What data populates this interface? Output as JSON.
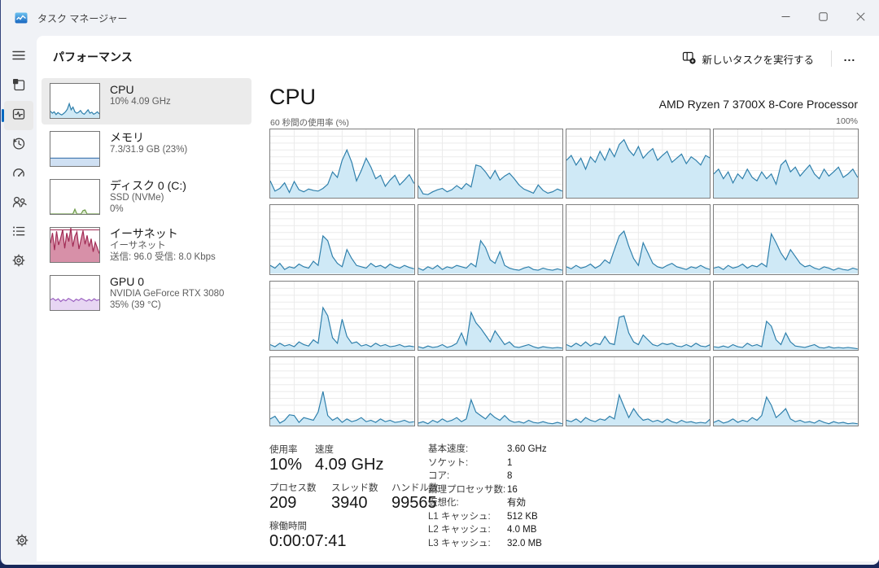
{
  "window": {
    "title": "タスク マネージャー"
  },
  "header": {
    "title": "パフォーマンス",
    "run_task_label": "新しいタスクを実行する",
    "more_label": "..."
  },
  "nav": {
    "items": [
      {
        "icon": "hamburger-icon"
      },
      {
        "icon": "processes-icon"
      },
      {
        "icon": "performance-icon",
        "selected": true
      },
      {
        "icon": "app-history-icon"
      },
      {
        "icon": "startup-apps-icon"
      },
      {
        "icon": "users-icon"
      },
      {
        "icon": "details-icon"
      },
      {
        "icon": "services-icon"
      },
      {
        "icon": "settings-icon"
      }
    ]
  },
  "sidebar": {
    "items": [
      {
        "title": "CPU",
        "sub1": "10%  4.09 GHz",
        "sub2": ""
      },
      {
        "title": "メモリ",
        "sub1": "7.3/31.9 GB (23%)",
        "sub2": ""
      },
      {
        "title": "ディスク 0 (C:)",
        "sub1": "SSD (NVMe)",
        "sub2": "0%"
      },
      {
        "title": "イーサネット",
        "sub1": "イーサネット",
        "sub2": "送信: 96.0 受信: 8.0 Kbps"
      },
      {
        "title": "GPU 0",
        "sub1": "NVIDIA GeForce RTX 3080",
        "sub2": "35%  (39 °C)"
      }
    ]
  },
  "main": {
    "title": "CPU",
    "subtitle": "AMD Ryzen 7 3700X 8-Core Processor",
    "axis_left": "60 秒間の使用率 (%)",
    "axis_right": "100%",
    "stats_left": {
      "usage_label": "使用率",
      "usage_value": "10%",
      "speed_label": "速度",
      "speed_value": "4.09 GHz",
      "processes_label": "プロセス数",
      "processes_value": "209",
      "threads_label": "スレッド数",
      "threads_value": "3940",
      "handles_label": "ハンドル数",
      "handles_value": "99565",
      "uptime_label": "稼働時間",
      "uptime_value": "0:00:07:41"
    },
    "stats_right": [
      {
        "label": "基本速度:",
        "value": "3.60 GHz"
      },
      {
        "label": "ソケット:",
        "value": "1"
      },
      {
        "label": "コア:",
        "value": "8"
      },
      {
        "label": "論理プロセッサ数:",
        "value": "16"
      },
      {
        "label": "仮想化:",
        "value": "有効"
      },
      {
        "label": "L1 キャッシュ:",
        "value": "512 KB"
      },
      {
        "label": "L2 キャッシュ:",
        "value": "4.0 MB"
      },
      {
        "label": "L3 キャッシュ:",
        "value": "32.0 MB"
      }
    ]
  },
  "chart_data": {
    "type": "area",
    "title": "60 秒間の使用率 (%)",
    "xlabel": "60 秒",
    "ylabel": "% 使用率",
    "ylim": [
      0,
      100
    ],
    "grid": true,
    "series": [
      {
        "name": "logical-processor-0",
        "values": [
          25,
          10,
          14,
          22,
          8,
          24,
          12,
          9,
          13,
          11,
          10,
          14,
          20,
          38,
          30,
          55,
          70,
          52,
          25,
          40,
          58,
          45,
          28,
          33,
          17,
          26,
          33,
          19,
          26,
          34,
          21
        ]
      },
      {
        "name": "logical-processor-1",
        "values": [
          18,
          6,
          5,
          9,
          12,
          14,
          9,
          12,
          18,
          13,
          21,
          16,
          48,
          46,
          38,
          28,
          40,
          26,
          32,
          36,
          28,
          19,
          13,
          10,
          7,
          19,
          11,
          7,
          9,
          13,
          10
        ]
      },
      {
        "name": "logical-processor-2",
        "values": [
          55,
          62,
          48,
          58,
          42,
          60,
          52,
          68,
          55,
          72,
          60,
          78,
          85,
          70,
          62,
          75,
          58,
          66,
          72,
          55,
          62,
          68,
          52,
          58,
          64,
          50,
          60,
          55,
          48,
          62,
          58
        ]
      },
      {
        "name": "logical-processor-3",
        "values": [
          35,
          42,
          28,
          38,
          22,
          35,
          28,
          42,
          30,
          25,
          38,
          28,
          35,
          20,
          48,
          55,
          38,
          45,
          32,
          40,
          48,
          35,
          28,
          42,
          32,
          38,
          45,
          30,
          35,
          42,
          30
        ]
      },
      {
        "name": "logical-processor-4",
        "values": [
          12,
          8,
          15,
          6,
          10,
          8,
          14,
          10,
          8,
          18,
          12,
          55,
          48,
          25,
          15,
          10,
          35,
          22,
          12,
          10,
          8,
          15,
          10,
          12,
          8,
          14,
          10,
          8,
          12,
          9,
          7
        ]
      },
      {
        "name": "logical-processor-5",
        "values": [
          8,
          5,
          10,
          7,
          12,
          6,
          10,
          8,
          12,
          10,
          8,
          15,
          10,
          48,
          38,
          20,
          15,
          32,
          12,
          8,
          6,
          5,
          8,
          10,
          6,
          5,
          8,
          6,
          5,
          7,
          5
        ]
      },
      {
        "name": "logical-processor-6",
        "values": [
          10,
          7,
          12,
          8,
          10,
          14,
          8,
          12,
          20,
          15,
          35,
          55,
          62,
          40,
          22,
          12,
          45,
          30,
          15,
          10,
          8,
          12,
          15,
          10,
          8,
          6,
          10,
          8,
          12,
          8,
          6
        ]
      },
      {
        "name": "logical-processor-7",
        "values": [
          8,
          10,
          6,
          12,
          8,
          10,
          14,
          8,
          12,
          10,
          15,
          10,
          58,
          45,
          30,
          20,
          35,
          25,
          15,
          10,
          12,
          8,
          6,
          10,
          8,
          5,
          8,
          6,
          5,
          8,
          6
        ]
      },
      {
        "name": "logical-processor-8",
        "values": [
          8,
          5,
          10,
          6,
          8,
          5,
          12,
          8,
          6,
          15,
          10,
          62,
          50,
          18,
          10,
          45,
          20,
          10,
          12,
          6,
          8,
          5,
          10,
          6,
          8,
          5,
          6,
          8,
          5,
          6,
          5
        ]
      },
      {
        "name": "logical-processor-9",
        "values": [
          5,
          3,
          6,
          4,
          5,
          8,
          4,
          6,
          10,
          25,
          8,
          55,
          40,
          32,
          22,
          12,
          28,
          18,
          8,
          12,
          5,
          4,
          6,
          8,
          5,
          3,
          5,
          4,
          3,
          4,
          3
        ]
      },
      {
        "name": "logical-processor-10",
        "values": [
          8,
          5,
          10,
          6,
          12,
          6,
          10,
          8,
          20,
          10,
          8,
          48,
          50,
          25,
          12,
          8,
          22,
          15,
          8,
          6,
          10,
          8,
          10,
          6,
          5,
          8,
          5,
          10,
          6,
          5,
          8
        ]
      },
      {
        "name": "logical-processor-11",
        "values": [
          5,
          4,
          6,
          4,
          8,
          5,
          4,
          10,
          6,
          8,
          5,
          42,
          35,
          15,
          8,
          25,
          12,
          6,
          5,
          4,
          6,
          8,
          4,
          3,
          5,
          3,
          4,
          3,
          4,
          3,
          2
        ]
      },
      {
        "name": "logical-processor-12",
        "values": [
          10,
          14,
          4,
          8,
          16,
          15,
          5,
          12,
          10,
          8,
          20,
          50,
          15,
          8,
          12,
          5,
          10,
          6,
          8,
          12,
          6,
          8,
          5,
          10,
          6,
          8,
          5,
          6,
          8,
          5,
          6
        ]
      },
      {
        "name": "logical-processor-13",
        "values": [
          4,
          6,
          3,
          8,
          5,
          10,
          6,
          8,
          12,
          6,
          10,
          38,
          20,
          15,
          10,
          18,
          12,
          8,
          15,
          8,
          5,
          6,
          4,
          8,
          5,
          4,
          6,
          4,
          3,
          5,
          3
        ]
      },
      {
        "name": "logical-processor-14",
        "values": [
          8,
          6,
          10,
          5,
          12,
          8,
          6,
          10,
          8,
          14,
          10,
          45,
          28,
          12,
          25,
          15,
          8,
          10,
          6,
          8,
          5,
          10,
          6,
          4,
          8,
          5,
          6,
          4,
          5,
          4,
          10
        ]
      },
      {
        "name": "logical-processor-15",
        "values": [
          5,
          8,
          4,
          6,
          10,
          5,
          8,
          6,
          12,
          8,
          15,
          42,
          30,
          12,
          18,
          25,
          10,
          6,
          8,
          5,
          6,
          4,
          8,
          5,
          3,
          6,
          4,
          5,
          3,
          4,
          3
        ]
      }
    ]
  },
  "thumbnails": {
    "cpu": [
      20,
      14,
      18,
      10,
      16,
      12,
      9,
      13,
      18,
      26,
      42,
      24,
      32,
      18,
      14,
      17,
      22,
      14,
      11,
      17,
      24,
      14,
      17,
      11,
      14,
      18,
      12
    ],
    "memory_percent": 23,
    "disk": [
      0,
      0,
      0,
      0,
      0,
      0,
      0,
      0,
      0,
      0,
      0,
      0,
      14,
      0,
      0,
      0,
      10,
      12,
      0,
      0,
      0,
      0,
      0,
      0,
      0
    ],
    "ethernet": [
      55,
      85,
      35,
      90,
      50,
      70,
      95,
      40,
      85,
      60,
      100,
      45,
      75,
      88,
      38,
      65,
      92,
      52,
      78,
      45,
      68,
      30,
      58,
      42,
      25
    ],
    "gpu": [
      30,
      34,
      28,
      33,
      25,
      31,
      27,
      34,
      30,
      25,
      32,
      28,
      34,
      30,
      26,
      31,
      27,
      33,
      28,
      31
    ]
  },
  "colors": {
    "accent": "#0067c0",
    "cpu_line": "#2e7fab",
    "cpu_fill": "#cfe9f6",
    "mem_line": "#4c7fb5",
    "mem_fill": "#cfe0f3",
    "disk_line": "#6f9c4a",
    "disk_fill": "#dcead0",
    "eth_line": "#a22c55",
    "eth_fill": "#d790a8",
    "gpu_line": "#9a5fc0",
    "gpu_fill": "#e7d6f3",
    "grid_line": "#ebebeb",
    "cell_border": "#7e7e7e"
  }
}
